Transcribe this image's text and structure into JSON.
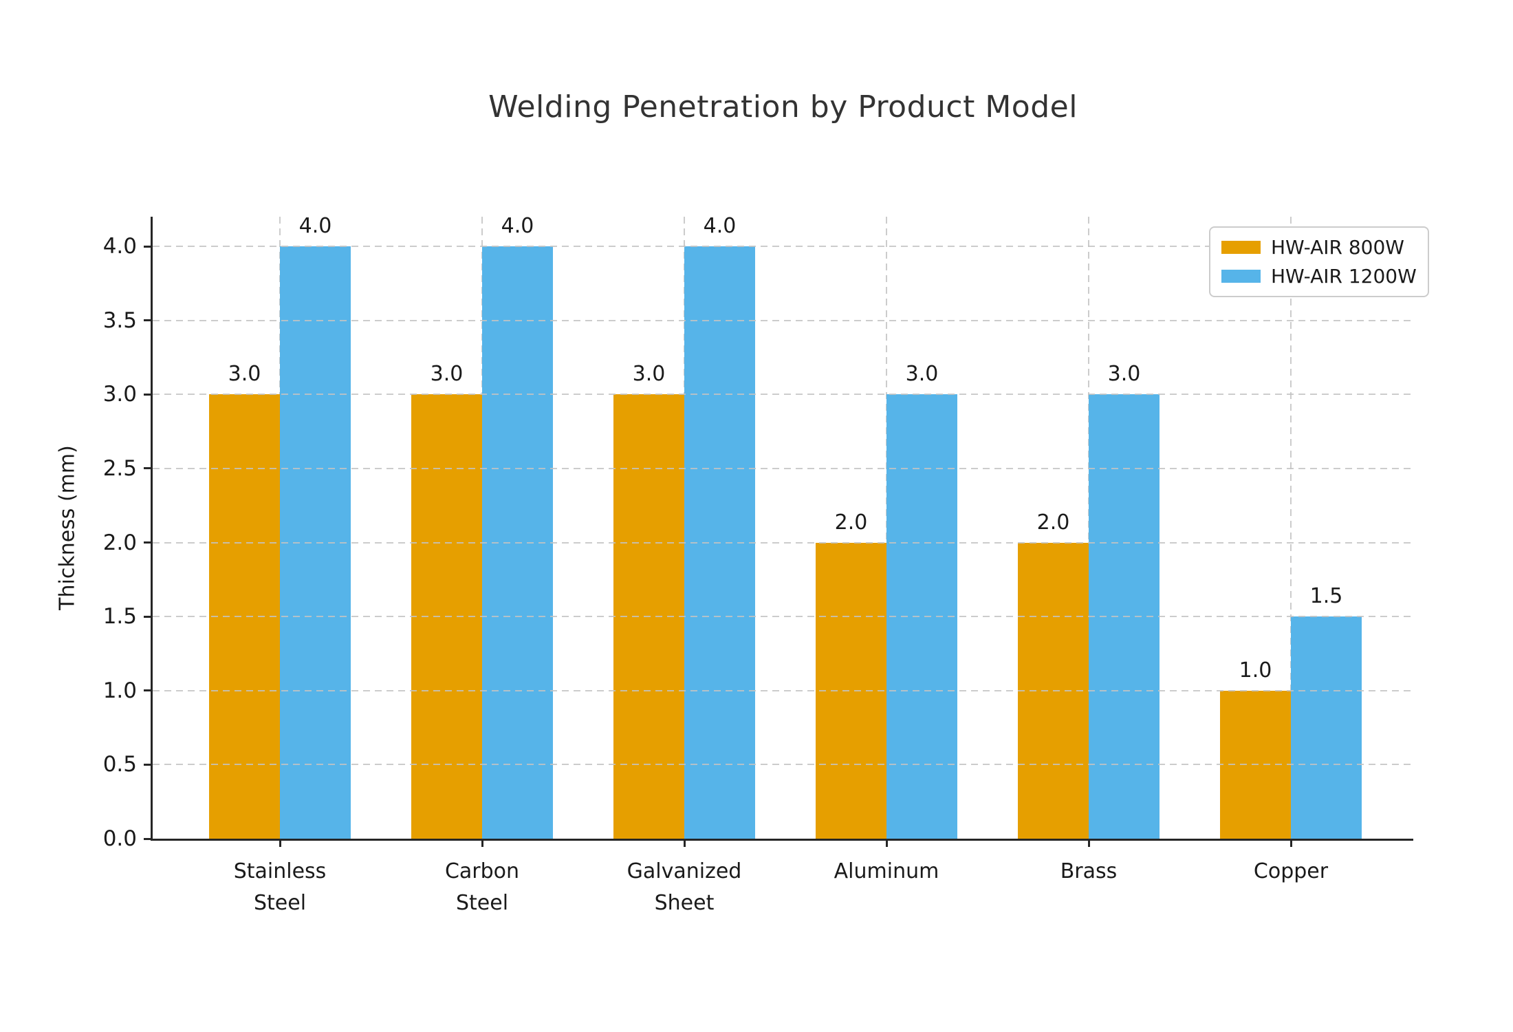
{
  "chart_data": {
    "type": "bar",
    "title": "Welding Penetration by Product Model",
    "ylabel": "Thickness (mm)",
    "xlabel": "",
    "categories": [
      "Stainless Steel",
      "Carbon Steel",
      "Galvanized Sheet",
      "Aluminum",
      "Brass",
      "Copper"
    ],
    "categories_display": [
      [
        "Stainless",
        "Steel"
      ],
      [
        "Carbon",
        "Steel"
      ],
      [
        "Galvanized",
        "Sheet"
      ],
      [
        "Aluminum"
      ],
      [
        "Brass"
      ],
      [
        "Copper"
      ]
    ],
    "series": [
      {
        "name": "HW-AIR 800W",
        "color": "#E69F00",
        "values": [
          3.0,
          3.0,
          3.0,
          2.0,
          2.0,
          1.0
        ]
      },
      {
        "name": "HW-AIR 1200W",
        "color": "#56B4E9",
        "values": [
          4.0,
          4.0,
          4.0,
          3.0,
          3.0,
          1.5
        ]
      }
    ],
    "ylim": [
      0,
      4.2
    ],
    "yticks": [
      0.0,
      0.5,
      1.0,
      1.5,
      2.0,
      2.5,
      3.0,
      3.5,
      4.0
    ],
    "bar_value_labels": true,
    "grid": "dashed, horizontal at every 0.5 and vertical at each group center",
    "legend_position": "upper right"
  },
  "colors": {
    "series_800w": "#E69F00",
    "series_1200w": "#56B4E9",
    "axis": "#262626",
    "grid": "#c3c3c3",
    "text": "#1a1a1a",
    "title": "#333333"
  }
}
